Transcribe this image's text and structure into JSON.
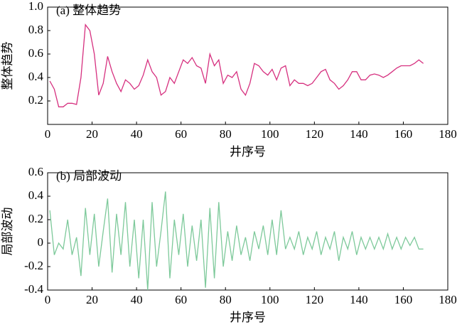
{
  "chart_data": [
    {
      "type": "line",
      "title": "(a) 整体趋势",
      "xlabel": "井序号",
      "ylabel": "整体趋势",
      "x": [
        1,
        3,
        5,
        7,
        9,
        11,
        13,
        15,
        17,
        19,
        21,
        23,
        25,
        27,
        29,
        31,
        33,
        35,
        37,
        39,
        41,
        43,
        45,
        47,
        49,
        51,
        53,
        55,
        57,
        59,
        61,
        63,
        65,
        67,
        69,
        71,
        73,
        75,
        77,
        79,
        81,
        83,
        85,
        87,
        89,
        91,
        93,
        95,
        97,
        99,
        101,
        103,
        105,
        107,
        109,
        111,
        113,
        115,
        117,
        119,
        121,
        123,
        125,
        127,
        129,
        131,
        133,
        135,
        137,
        139,
        141,
        143,
        145,
        147,
        149,
        151,
        153,
        155,
        157,
        159,
        161,
        163,
        165,
        167,
        169
      ],
      "series": [
        {
          "color": "#d6307f",
          "values": [
            0.37,
            0.3,
            0.15,
            0.15,
            0.18,
            0.18,
            0.17,
            0.4,
            0.85,
            0.8,
            0.6,
            0.25,
            0.35,
            0.58,
            0.45,
            0.35,
            0.28,
            0.38,
            0.35,
            0.3,
            0.33,
            0.42,
            0.55,
            0.45,
            0.4,
            0.25,
            0.28,
            0.4,
            0.35,
            0.45,
            0.55,
            0.52,
            0.57,
            0.5,
            0.48,
            0.35,
            0.6,
            0.5,
            0.55,
            0.35,
            0.42,
            0.4,
            0.45,
            0.3,
            0.25,
            0.35,
            0.52,
            0.5,
            0.45,
            0.42,
            0.47,
            0.38,
            0.48,
            0.5,
            0.33,
            0.38,
            0.35,
            0.35,
            0.33,
            0.35,
            0.4,
            0.45,
            0.47,
            0.38,
            0.35,
            0.3,
            0.33,
            0.38,
            0.45,
            0.45,
            0.38,
            0.38,
            0.42,
            0.43,
            0.42,
            0.4,
            0.42,
            0.45,
            0.48,
            0.5,
            0.5,
            0.5,
            0.52,
            0.55,
            0.52
          ]
        }
      ],
      "xlim": [
        0,
        180
      ],
      "xticks": [
        0,
        20,
        40,
        60,
        80,
        100,
        120,
        140,
        160,
        180
      ],
      "ylim": [
        0,
        1
      ],
      "yticks": [
        0.2,
        0.4,
        0.6,
        0.8,
        {
          "value": 1,
          "label": "1.0"
        }
      ]
    },
    {
      "type": "line",
      "title": "(b) 局部波动",
      "xlabel": "井序号",
      "ylabel": "局部波动",
      "x": [
        1,
        3,
        5,
        7,
        9,
        11,
        13,
        15,
        17,
        19,
        21,
        23,
        25,
        27,
        29,
        31,
        33,
        35,
        37,
        39,
        41,
        43,
        45,
        47,
        49,
        51,
        53,
        55,
        57,
        59,
        61,
        63,
        65,
        67,
        69,
        71,
        73,
        75,
        77,
        79,
        81,
        83,
        85,
        87,
        89,
        91,
        93,
        95,
        97,
        99,
        101,
        103,
        105,
        107,
        109,
        111,
        113,
        115,
        117,
        119,
        121,
        123,
        125,
        127,
        129,
        131,
        133,
        135,
        137,
        139,
        141,
        143,
        145,
        147,
        149,
        151,
        153,
        155,
        157,
        159,
        161,
        163,
        165,
        167,
        169
      ],
      "series": [
        {
          "color": "#7dc99a",
          "values": [
            0.28,
            -0.1,
            0,
            -0.05,
            0.2,
            -0.1,
            0.05,
            -0.28,
            0.3,
            -0.1,
            0.25,
            -0.2,
            0.1,
            0.38,
            -0.25,
            0.25,
            -0.1,
            0.35,
            -0.2,
            0.2,
            -0.3,
            0.2,
            -0.4,
            0.35,
            -0.2,
            0.1,
            0.44,
            -0.3,
            0.2,
            -0.1,
            0.25,
            -0.2,
            0.15,
            -0.15,
            0.2,
            -0.38,
            0.3,
            -0.3,
            0.35,
            -0.2,
            0.1,
            -0.15,
            0.15,
            -0.1,
            0.05,
            -0.15,
            0.1,
            -0.05,
            0.15,
            -0.1,
            0.2,
            -0.1,
            0.28,
            -0.05,
            0.05,
            -0.05,
            0.1,
            -0.1,
            0.05,
            -0.05,
            0.1,
            -0.1,
            0.05,
            -0.05,
            0.1,
            -0.15,
            0.05,
            -0.05,
            0.1,
            -0.1,
            0.05,
            -0.05,
            0.05,
            -0.05,
            0.05,
            -0.05,
            0.08,
            -0.05,
            0.05,
            -0.05,
            0.05,
            -0.02,
            0.05,
            -0.05,
            -0.05
          ]
        }
      ],
      "xlim": [
        0,
        180
      ],
      "xticks": [
        0,
        20,
        40,
        60,
        80,
        100,
        120,
        140,
        160,
        180
      ],
      "ylim": [
        -0.4,
        0.6
      ],
      "yticks": [
        -0.4,
        -0.2,
        0,
        0.2,
        0.4,
        0.6
      ]
    }
  ]
}
